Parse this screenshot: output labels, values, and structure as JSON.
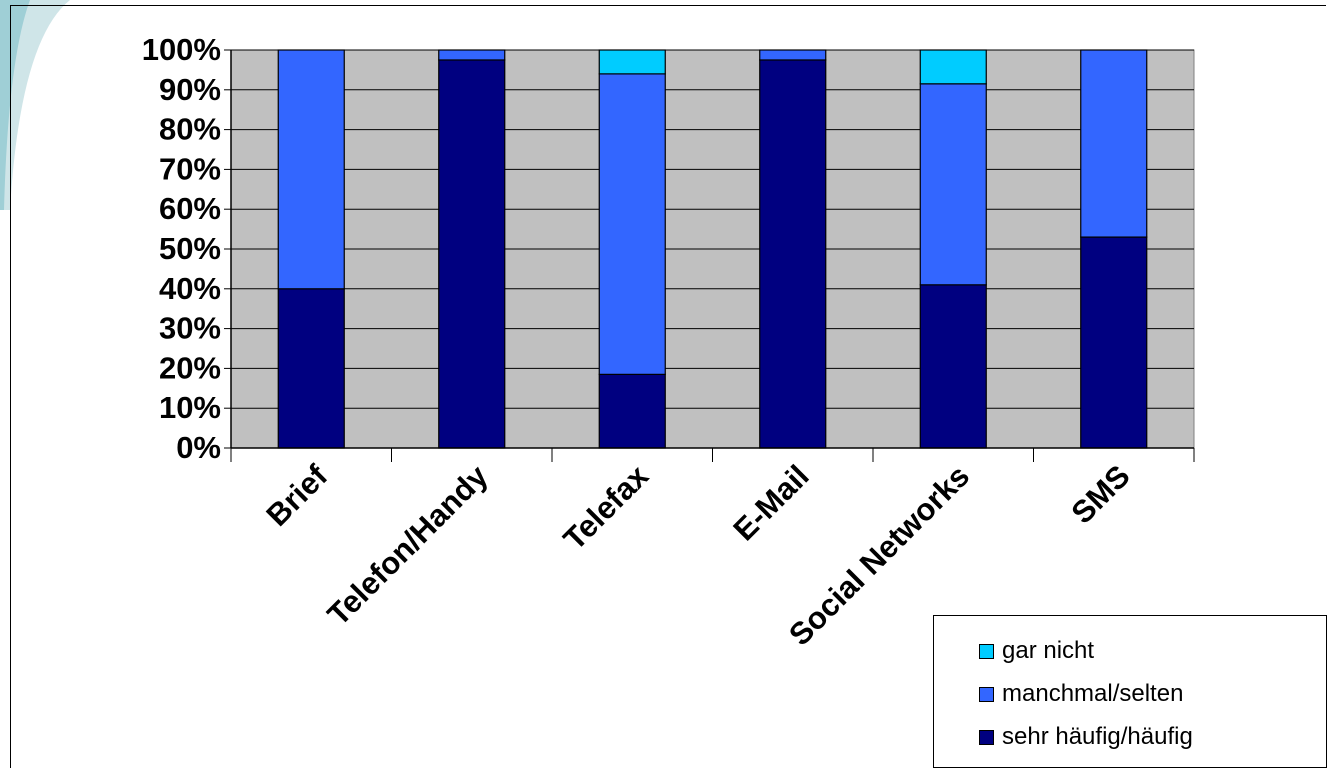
{
  "chart_data": {
    "type": "bar",
    "stacked": true,
    "categories": [
      "Brief",
      "Telefon/Handy",
      "Telefax",
      "E-Mail",
      "Social Networks",
      "SMS"
    ],
    "series": [
      {
        "name": "sehr häufig/häufig",
        "color": "#000080",
        "values": [
          40,
          97.5,
          18.5,
          97.5,
          41,
          53
        ]
      },
      {
        "name": "manchmal/selten",
        "color": "#3366FF",
        "values": [
          60,
          2.5,
          75.5,
          2.5,
          50.5,
          47
        ]
      },
      {
        "name": "gar nicht",
        "color": "#00CCFF",
        "values": [
          0,
          0,
          6,
          0,
          8.5,
          0
        ]
      }
    ],
    "yticks": [
      "0%",
      "10%",
      "20%",
      "30%",
      "40%",
      "50%",
      "60%",
      "70%",
      "80%",
      "90%",
      "100%"
    ],
    "ylim": [
      0,
      100
    ],
    "plot_background": "#C0C0C0",
    "grid": true,
    "legend_position": "bottom-right"
  }
}
